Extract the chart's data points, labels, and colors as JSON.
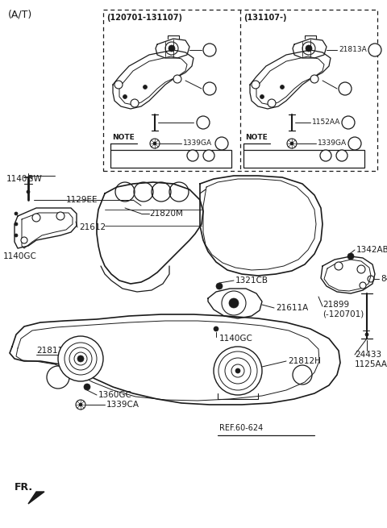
{
  "title": "(A/T)",
  "bg_color": "#ffffff",
  "line_color": "#1a1a1a",
  "label_fontsize": 7.5,
  "title_fontsize": 9,
  "inset1_title": "(120701-131107)",
  "inset2_title": "(131107-)",
  "ref_text": "REF.60-624",
  "fr_text": "FR."
}
